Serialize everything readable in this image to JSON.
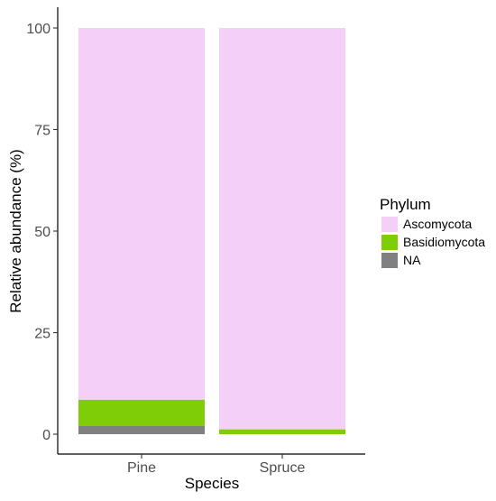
{
  "chart_data": {
    "type": "bar",
    "stacked": true,
    "percent": true,
    "categories": [
      "Pine",
      "Spruce"
    ],
    "series": [
      {
        "name": "NA",
        "values": [
          2,
          0
        ],
        "color": "#808080"
      },
      {
        "name": "Basidiomycota",
        "values": [
          6.5,
          1.2
        ],
        "color": "#7fcd07"
      },
      {
        "name": "Ascomycota",
        "values": [
          91.5,
          98.8
        ],
        "color": "#f4d0f8"
      }
    ],
    "xlabel": "Species",
    "ylabel": "Relative abundance (%)",
    "ylim": [
      0,
      100
    ],
    "yticks": [
      0,
      25,
      50,
      75,
      100
    ],
    "grid": false,
    "legend": {
      "title": "Phylum",
      "placement": "right",
      "entries": [
        "Ascomycota",
        "Basidiomycota",
        "NA"
      ]
    }
  }
}
